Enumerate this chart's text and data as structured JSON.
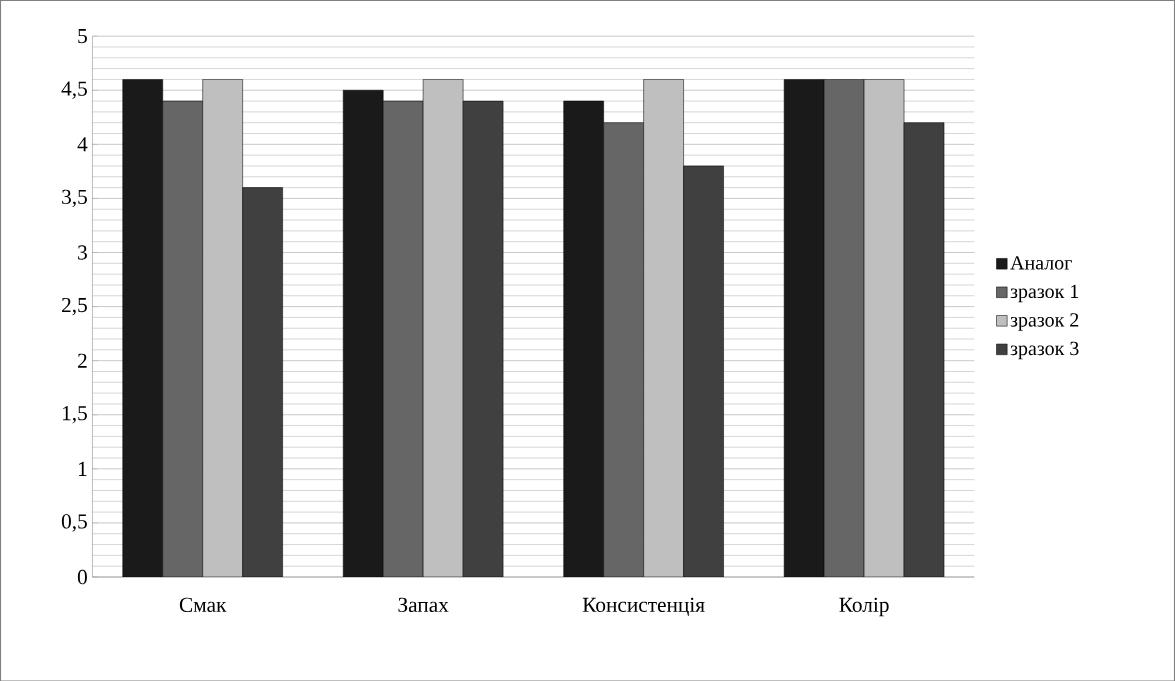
{
  "chart_data": {
    "type": "bar",
    "categories": [
      "Смак",
      "Запах",
      "Консистенція",
      "Колір"
    ],
    "series": [
      {
        "name": "Аналог",
        "color": "#1a1a1a",
        "values": [
          4.6,
          4.5,
          4.4,
          4.6
        ]
      },
      {
        "name": "зразок 1",
        "color": "#666666",
        "values": [
          4.4,
          4.4,
          4.2,
          4.6
        ]
      },
      {
        "name": "зразок 2",
        "color": "#bfbfbf",
        "values": [
          4.6,
          4.6,
          4.6,
          4.6
        ]
      },
      {
        "name": "зразок 3",
        "color": "#404040",
        "values": [
          3.6,
          4.4,
          3.8,
          4.2
        ]
      }
    ],
    "ylim": [
      0,
      5
    ],
    "yticks": [
      0,
      {
        "value": 0.5,
        "label": "0,5"
      },
      1,
      {
        "value": 1.5,
        "label": "1,5"
      },
      2,
      {
        "value": 2.5,
        "label": "2,5"
      },
      3,
      {
        "value": 3.5,
        "label": "3,5"
      },
      4,
      {
        "value": 4.5,
        "label": "4,5"
      },
      5
    ],
    "grid": "y",
    "legend": "right"
  }
}
